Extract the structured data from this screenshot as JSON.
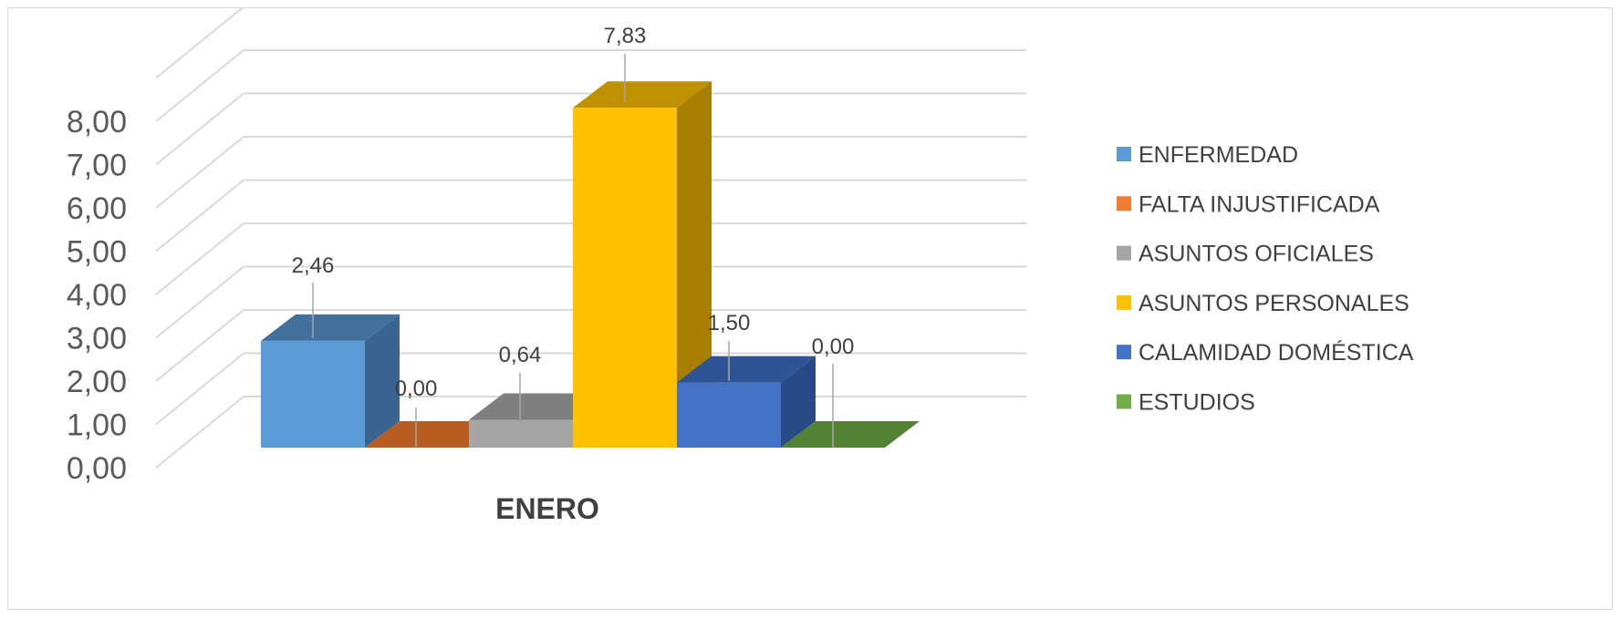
{
  "chart_data": {
    "type": "bar",
    "style": "3d-clustered-column",
    "categories": [
      "ENERO"
    ],
    "series": [
      {
        "name": "ENFERMEDAD",
        "values": [
          2.46
        ],
        "label": "2,46",
        "color": "#5B9BD5",
        "top_color": "#41719C",
        "side_color": "#3A6590"
      },
      {
        "name": "FALTA INJUSTIFICADA",
        "values": [
          0.0
        ],
        "label": "0,00",
        "color": "#ED7D31",
        "top_color": "#B85E22",
        "side_color": "#A3521D"
      },
      {
        "name": "ASUNTOS OFICIALES",
        "values": [
          0.64
        ],
        "label": "0,64",
        "color": "#A5A5A5",
        "top_color": "#7F7F7F",
        "side_color": "#6F6F6F"
      },
      {
        "name": "ASUNTOS PERSONALES",
        "values": [
          7.83
        ],
        "label": "7,83",
        "color": "#FFC000",
        "top_color": "#BF9000",
        "side_color": "#A87E00"
      },
      {
        "name": "CALAMIDAD DOMÉSTICA",
        "values": [
          1.5
        ],
        "label": "1,50",
        "color": "#4472C4",
        "top_color": "#2F5496",
        "side_color": "#284A85"
      },
      {
        "name": "ESTUDIOS",
        "values": [
          0.0
        ],
        "label": "0,00",
        "color": "#70AD47",
        "top_color": "#548235",
        "side_color": "#4A7330"
      }
    ],
    "yticks": [
      "0,00",
      "1,00",
      "2,00",
      "3,00",
      "4,00",
      "5,00",
      "6,00",
      "7,00",
      "8,00"
    ],
    "ylim": [
      0,
      8
    ],
    "grid": true,
    "legend_position": "right",
    "title": "",
    "xlabel": "",
    "ylabel": ""
  }
}
